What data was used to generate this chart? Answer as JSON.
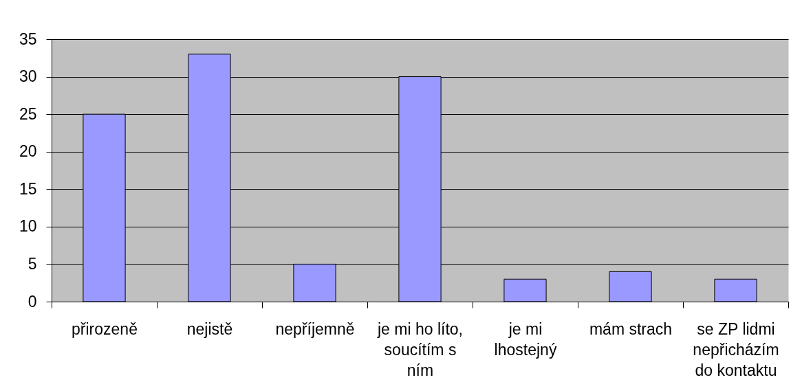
{
  "chart_data": {
    "type": "bar",
    "categories": [
      "přirozeně",
      "nejistě",
      "nepříjemně",
      "je mi ho líto, soucítím s ním",
      "je mi lhostejný",
      "mám strach",
      "se ZP lidmi nepřicházím do kontaktu"
    ],
    "values": [
      25,
      33,
      5,
      30,
      3,
      4,
      3
    ],
    "color": "#9999ff",
    "ylim": [
      0,
      35
    ],
    "yticks": [
      0,
      5,
      10,
      15,
      20,
      25,
      30,
      35
    ],
    "grid": "y"
  }
}
